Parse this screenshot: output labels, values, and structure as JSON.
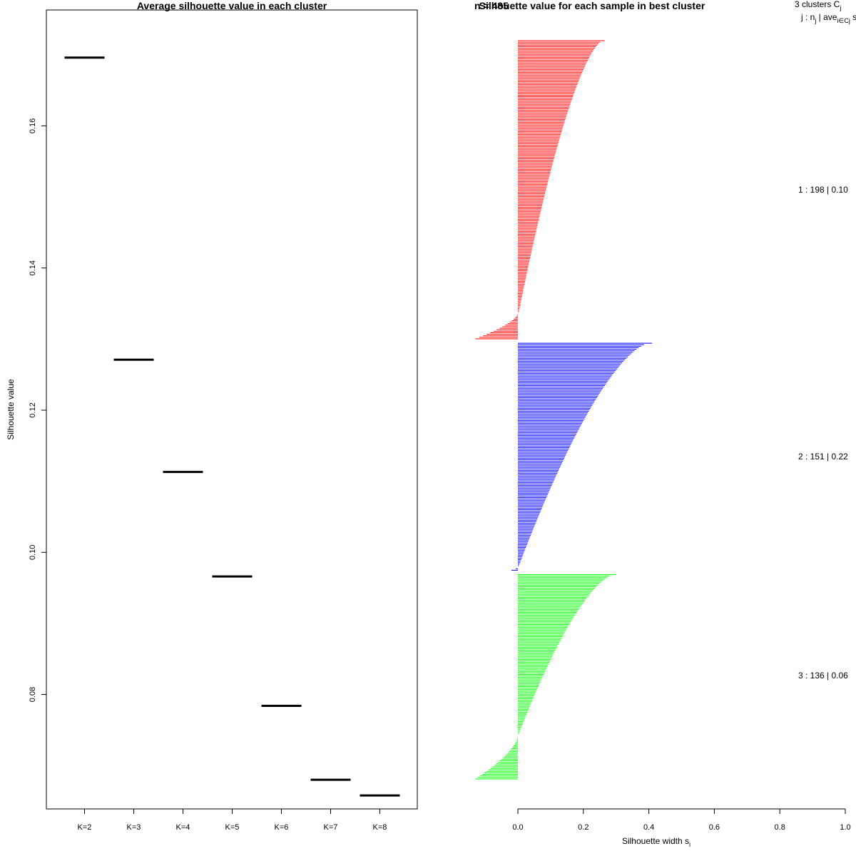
{
  "chart_data": [
    {
      "type": "line",
      "title": "Average silhouette value in each cluster",
      "xlabel": "",
      "ylabel": "Silhouette value",
      "categories": [
        "K=2",
        "K=3",
        "K=4",
        "K=5",
        "K=6",
        "K=7",
        "K=8"
      ],
      "values": [
        0.1696,
        0.1271,
        0.1113,
        0.0966,
        0.0784,
        0.068,
        0.0658
      ],
      "y_ticks": [
        "0.08",
        "0.10",
        "0.12",
        "0.14",
        "0.16"
      ],
      "ylim": [
        0.0639,
        0.1763
      ]
    },
    {
      "type": "bar",
      "title": "Silhouette value for each sample in best cluster",
      "title_overlap": "n = 485",
      "xlabel": "Silhouette width s",
      "xlabel_sub": "i",
      "x_ticks": [
        "0.0",
        "0.2",
        "0.4",
        "0.6",
        "0.8",
        "1.0"
      ],
      "xlim": [
        0,
        1
      ],
      "legend_header_1": "3  clusters  C",
      "legend_header_1_sub": "j",
      "legend_header_2": "j :  n",
      "legend_header_2_sub": "j",
      "legend_header_2b": " | ave",
      "legend_header_2b_sub": "i∈Cj",
      "legend_header_2c": "  s",
      "legend_header_2c_sub": "i",
      "clusters": [
        {
          "id": 1,
          "n": 198,
          "color": "#ff0000",
          "label": "1 :   198  |  0.10",
          "max_width": 0.265,
          "max_negative": -0.13,
          "negative_count": 18
        },
        {
          "id": 2,
          "n": 151,
          "color": "#0000ff",
          "label": "2 :   151  |  0.22",
          "max_width": 0.41,
          "max_negative": -0.02,
          "negative_count": 3
        },
        {
          "id": 3,
          "n": 136,
          "color": "#00ff00",
          "label": "3 :   136  |  0.06",
          "max_width": 0.3,
          "max_negative": -0.13,
          "negative_count": 30
        }
      ]
    }
  ]
}
